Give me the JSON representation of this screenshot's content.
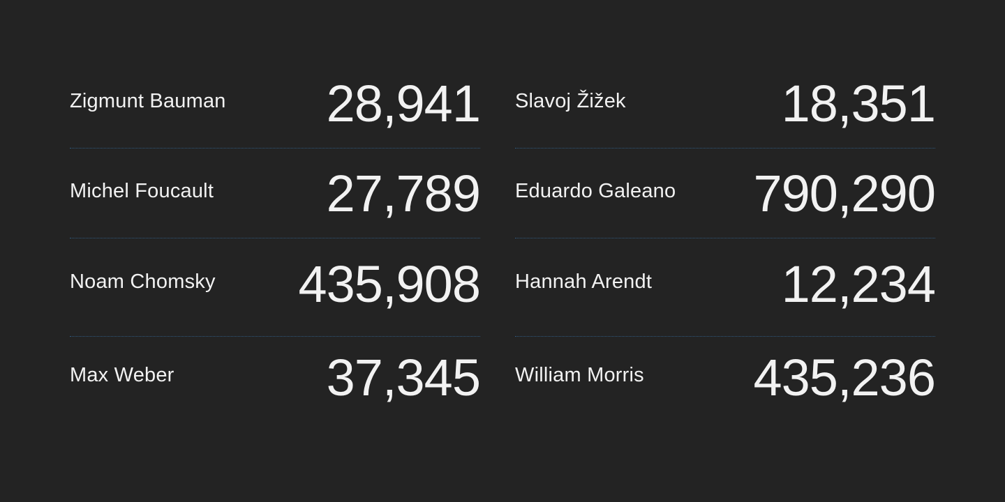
{
  "colors": {
    "background": "#232323",
    "text": "#f2f2f2",
    "divider": "#2f5a80"
  },
  "columns": [
    {
      "rows": [
        {
          "name": "Zigmunt Bauman",
          "value": "28,941"
        },
        {
          "name": "Michel Foucault",
          "value": "27,789"
        },
        {
          "name": "Noam Chomsky",
          "value": "435,908"
        },
        {
          "name": "Max Weber",
          "value": "37,345"
        }
      ]
    },
    {
      "rows": [
        {
          "name": "Slavoj Žižek",
          "value": "18,351"
        },
        {
          "name": "Eduardo Galeano",
          "value": "790,290"
        },
        {
          "name": "Hannah Arendt",
          "value": "12,234"
        },
        {
          "name": "William Morris",
          "value": "435,236"
        }
      ]
    }
  ]
}
